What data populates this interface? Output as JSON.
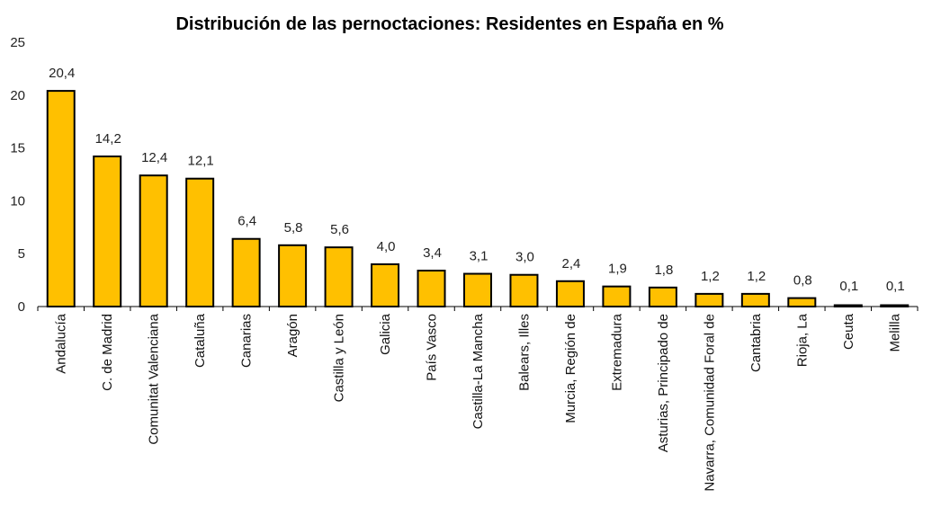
{
  "chart_data": {
    "type": "bar",
    "title": "Distribución de las pernoctaciones: Residentes en España en %",
    "xlabel": "",
    "ylabel": "",
    "ylim": [
      0,
      25
    ],
    "yticks": [
      0,
      5,
      10,
      15,
      20,
      25
    ],
    "grid": false,
    "legend": "none",
    "bar_color": "#FFC000",
    "bar_edge_color": "#000000",
    "categories": [
      "Andalucía",
      "C. de Madrid",
      "Comunitat Valenciana",
      "Cataluña",
      "Canarias",
      "Aragón",
      "Castilla y León",
      "Galicia",
      "País Vasco",
      "Castilla-La Mancha",
      "Balears, Illes",
      "Murcia, Región de",
      "Extremadura",
      "Asturias, Principado de",
      "Navarra, Comunidad Foral de",
      "Cantabria",
      "Rioja, La",
      "Ceuta",
      "Melilla"
    ],
    "values": [
      20.4,
      14.2,
      12.4,
      12.1,
      6.4,
      5.8,
      5.6,
      4.0,
      3.4,
      3.1,
      3.0,
      2.4,
      1.9,
      1.8,
      1.2,
      1.2,
      0.8,
      0.1,
      0.1
    ],
    "data_labels": [
      "20,4",
      "14,2",
      "12,4",
      "12,1",
      "6,4",
      "5,8",
      "5,6",
      "4,0",
      "3,4",
      "3,1",
      "3,0",
      "2,4",
      "1,9",
      "1,8",
      "1,2",
      "1,2",
      "0,8",
      "0,1",
      "0,1"
    ]
  }
}
